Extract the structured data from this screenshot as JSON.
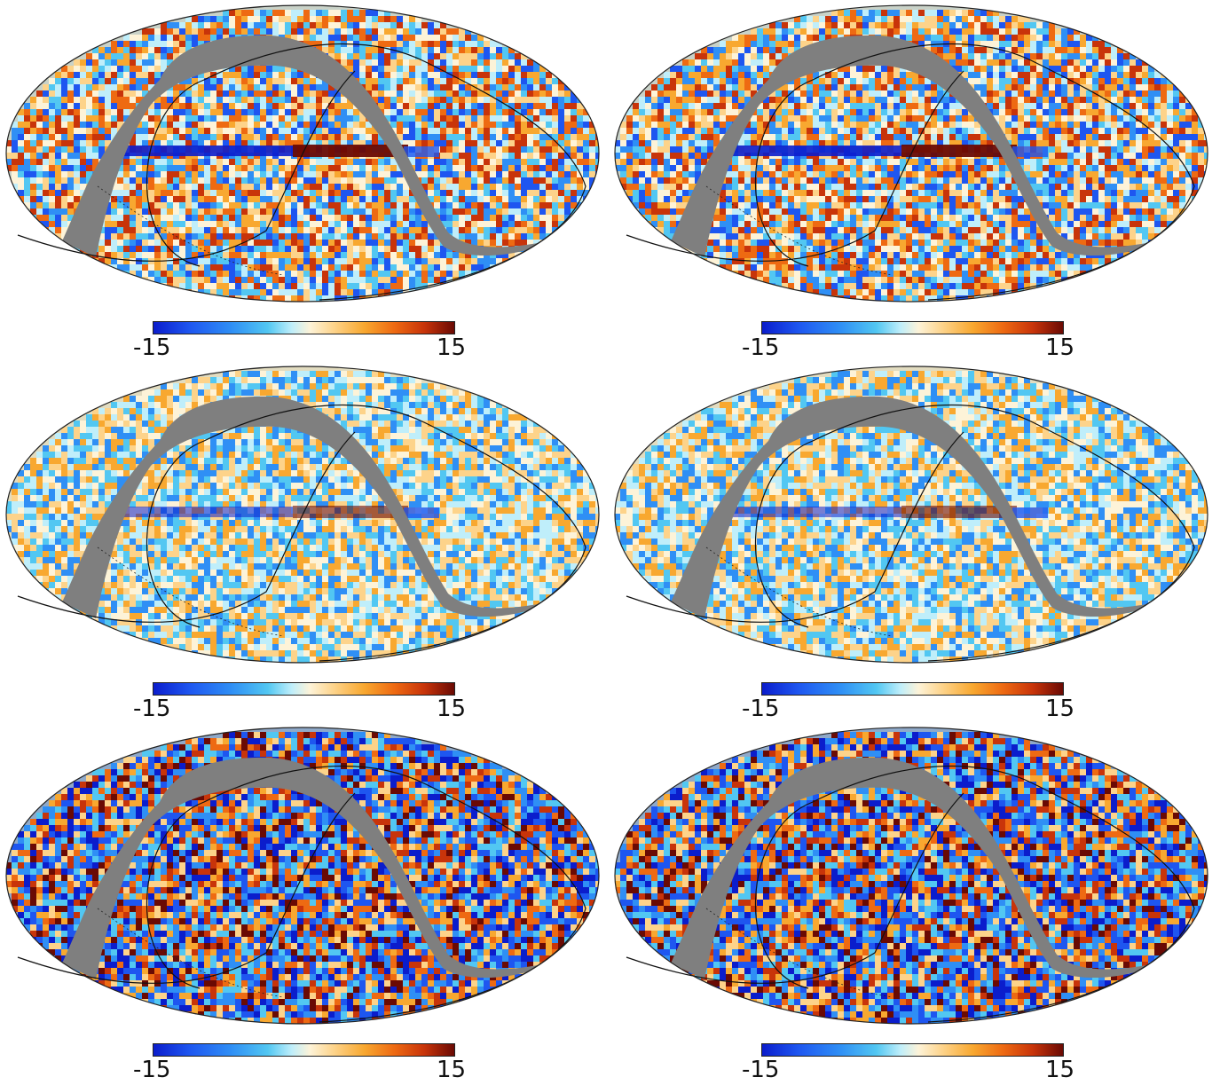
{
  "figure": {
    "colorbar": {
      "min_label": "-15",
      "max_label": "15"
    },
    "colors": {
      "mask_gray": "#7f7f7f",
      "cmap": [
        "#0b1dcc",
        "#1e56f0",
        "#2f8ff5",
        "#52c7f2",
        "#bfeefa",
        "#fdf3d8",
        "#fdd38a",
        "#f8a830",
        "#ee6a12",
        "#c8340a",
        "#6a0a04"
      ]
    },
    "panels": [
      {
        "variant": "strong-plane",
        "colorbar": {
          "min_label": "-15",
          "max_label": "15"
        }
      },
      {
        "variant": "strong-plane",
        "colorbar": {
          "min_label": "-15",
          "max_label": "15"
        }
      },
      {
        "variant": "smooth",
        "colorbar": {
          "min_label": "-15",
          "max_label": "15"
        }
      },
      {
        "variant": "smooth",
        "colorbar": {
          "min_label": "-15",
          "max_label": "15"
        }
      },
      {
        "variant": "noisy",
        "colorbar": {
          "min_label": "-15",
          "max_label": "15"
        }
      },
      {
        "variant": "noisy",
        "colorbar": {
          "min_label": "-15",
          "max_label": "15"
        }
      }
    ]
  }
}
